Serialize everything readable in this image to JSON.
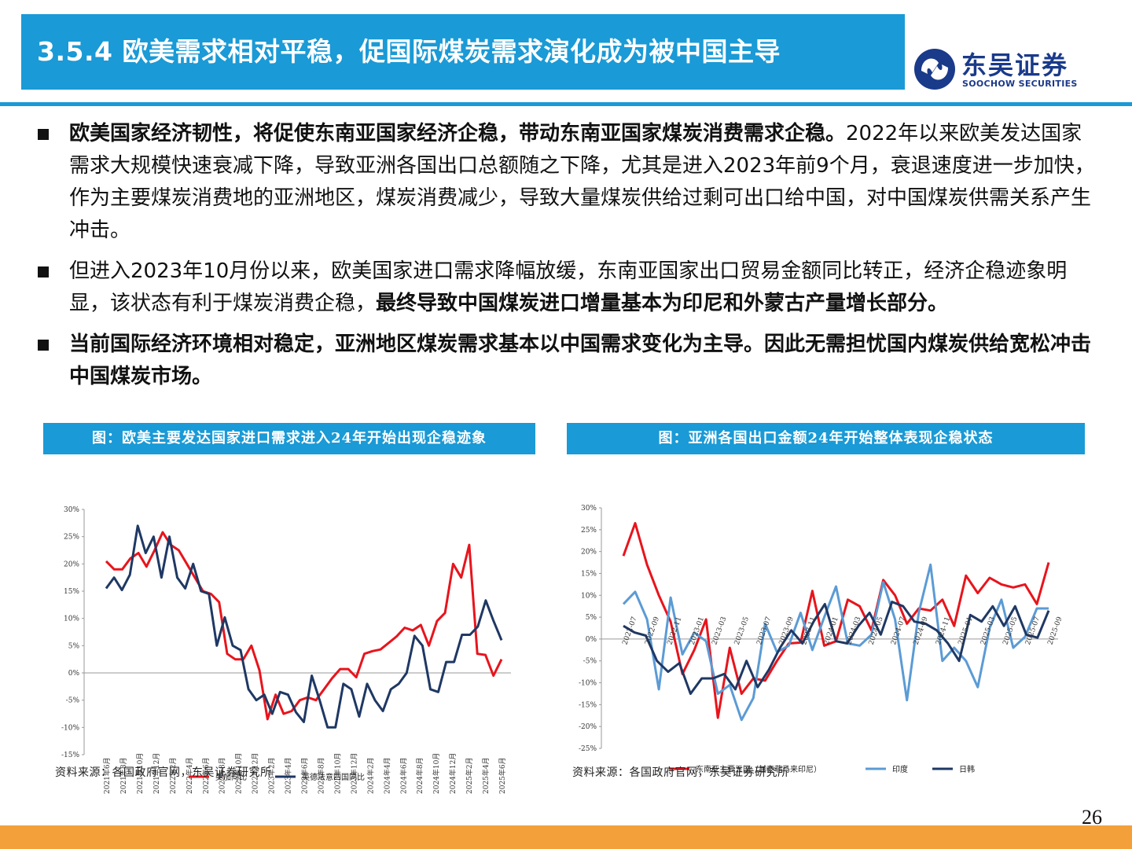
{
  "header": {
    "title": "3.5.4 欧美需求相对平稳，促国际煤炭需求演化成为被中国主导",
    "logo_cn": "东吴证券",
    "logo_en": "SOOCHOW SECURITIES"
  },
  "bullets": [
    {
      "bold": "欧美国家经济韧性，将促使东南亚国家经济企稳，带动东南亚国家煤炭消费需求企稳。",
      "text": "2022年以来欧美发达国家需求大规模快速衰减下降，导致亚洲各国出口总额随之下降，尤其是进入2023年前9个月，衰退速度进一步加快，作为主要煤炭消费地的亚洲地区，煤炭消费减少，导致大量煤炭供给过剩可出口给中国，对中国煤炭供需关系产生冲击。",
      "tail": ""
    },
    {
      "bold": "",
      "text": "但进入2023年10月份以来，欧美国家进口需求降幅放缓，东南亚国家出口贸易金额同比转正，经济企稳迹象明显，该状态有利于煤炭消费企稳，",
      "tail": "最终导致中国煤炭进口增量基本为印尼和外蒙古产量增长部分。"
    },
    {
      "bold": "当前国际经济环境相对稳定，亚洲地区煤炭需求基本以中国需求变化为主导。因此无需担忧国内煤炭供给宽松冲击中国煤炭市场。",
      "text": "",
      "tail": ""
    }
  ],
  "charts": {
    "left_title": "图：欧美主要发达国家进口需求进入24年开始出现企稳迹象",
    "right_title": "图：亚洲各国出口金额24年开始整体表现企稳状态",
    "left_source": "资料来源：各国政府官网，东吴证券研究所",
    "right_source": "资料来源：各国政府官网，东吴证券研究所"
  },
  "page_number": "26",
  "colors": {
    "accent": "#1a9ad6",
    "red": "#e8141c",
    "navy": "#1f3864",
    "lightblue": "#5b9bd5",
    "footer": "#f3a03b"
  },
  "chart_data": [
    {
      "type": "line",
      "ylim": [
        -15,
        30
      ],
      "yticks": [
        "30%",
        "25%",
        "20%",
        "15%",
        "10%",
        "5%",
        "0%",
        "-5%",
        "-10%",
        "-15%"
      ],
      "xticks": [
        "2021年6月",
        "2021年8月",
        "2021年10月",
        "2021年12月",
        "2022年2月",
        "2022年4月",
        "2022年6月",
        "2022年8月",
        "2022年10月",
        "2022年12月",
        "2023年2月",
        "2023年4月",
        "2023年6月",
        "2023年8月",
        "2023年10月",
        "2023年12月",
        "2024年2月",
        "2024年4月",
        "2024年6月",
        "2024年8月",
        "2024年10月",
        "2024年12月",
        "2025年2月",
        "2025年4月",
        "2025年6月"
      ],
      "series": [
        {
          "name": "美加同比",
          "color": "#e8141c",
          "values": [
            20.5,
            19,
            19,
            21,
            22,
            19.5,
            22.5,
            25.8,
            23.5,
            22.5,
            20,
            17.5,
            15,
            14.5,
            13,
            3.5,
            2.5,
            2.5,
            5,
            0.5,
            -8.5,
            -4,
            -7.5,
            -7,
            -5,
            -4.5,
            -5,
            -3,
            -1,
            0.7,
            0.7,
            -0.8,
            3.5,
            4,
            4.3,
            5.5,
            6.7,
            8.3,
            7.8,
            8.8,
            5,
            9.5,
            11,
            20,
            17.5,
            23.5,
            3.5,
            3.3,
            -0.5,
            2.5
          ]
        },
        {
          "name": "英德法意四国同比",
          "color": "#1f3864",
          "values": [
            15.5,
            17.5,
            15.2,
            18,
            27,
            22,
            25,
            17.5,
            25,
            17.5,
            15.5,
            20,
            15,
            14.5,
            5,
            10.2,
            5,
            4.2,
            -3,
            -5,
            -4,
            -7.5,
            -3.5,
            -4,
            -7.2,
            -9,
            -0.5,
            -5,
            -10,
            -10,
            -2,
            -3,
            -8,
            -2,
            -5,
            -7,
            -3,
            -2,
            0,
            6.8,
            5,
            -3,
            -3.5,
            2,
            2,
            7,
            7,
            8.5,
            13.3,
            9.5,
            6
          ]
        }
      ]
    },
    {
      "type": "line",
      "ylim": [
        -25,
        30
      ],
      "yticks": [
        "30%",
        "25%",
        "20%",
        "15%",
        "10%",
        "5%",
        "0%",
        "-5%",
        "-10%",
        "-15%",
        "-20%",
        "-25%"
      ],
      "xticks": [
        "2022-07",
        "2022-09",
        "2022-11",
        "2023-01",
        "2023-03",
        "2023-05",
        "2023-07",
        "2023-09",
        "2023-11",
        "2024-01",
        "2024-03",
        "2024-05",
        "2024-07",
        "2024-09",
        "2024-11",
        "2025-01",
        "2025-03",
        "2025-05",
        "2025-07",
        "2025-09"
      ],
      "series": [
        {
          "name": "东南亚主要五国（越泰菲马来印尼）",
          "color": "#e8141c",
          "values": [
            19,
            26.5,
            17,
            10,
            4,
            -8,
            -2.5,
            4.5,
            -18,
            -2,
            -12.5,
            -9,
            -9.5,
            -5,
            -1,
            -0.8,
            11,
            -1.5,
            -0.5,
            9,
            7.5,
            2,
            13.5,
            10,
            3.5,
            7,
            6.5,
            9,
            3,
            14.5,
            10.5,
            14,
            12.5,
            11.8,
            12.5,
            8,
            17.5
          ]
        },
        {
          "name": "印度",
          "color": "#5b9bd5",
          "values": [
            8,
            10.8,
            4.5,
            -11.5,
            9.5,
            -3.5,
            1.5,
            -0.5,
            -12.5,
            -10.5,
            -18.5,
            -13.5,
            3.5,
            -3,
            -1.5,
            6,
            -2.5,
            5,
            12,
            -1,
            -1.5,
            1,
            13,
            4.5,
            -14,
            6,
            17,
            -5,
            -2,
            -5,
            -11,
            2.5,
            9,
            -2,
            0.5,
            7,
            7
          ]
        },
        {
          "name": "日韩",
          "color": "#1f3864",
          "values": [
            3,
            1.5,
            0.8,
            -5,
            -7.5,
            -5.5,
            -12.5,
            -9,
            -9,
            -8,
            -11.5,
            -5,
            -11,
            -7,
            -2,
            2,
            -1,
            4,
            8,
            -0.5,
            -1,
            3,
            6,
            1,
            8.5,
            7.5,
            4,
            3.5,
            2,
            -1,
            -5,
            5.5,
            4,
            7.5,
            3,
            7.5,
            1,
            0.3,
            6.5
          ]
        }
      ]
    }
  ]
}
